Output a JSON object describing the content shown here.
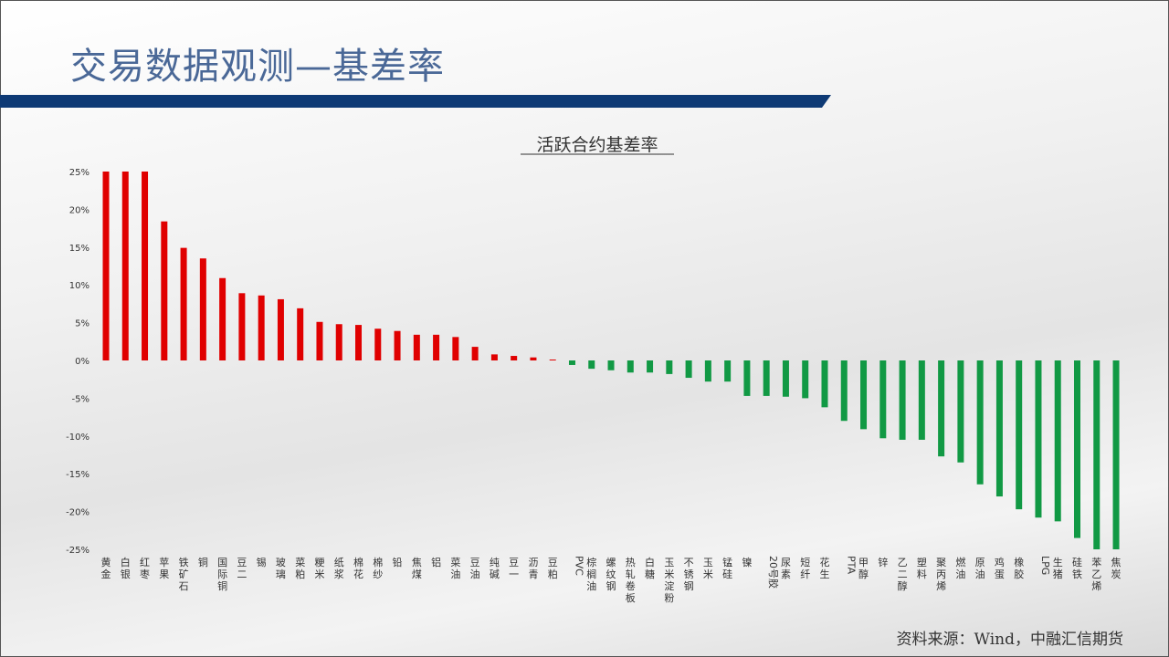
{
  "header": {
    "title": "交易数据观测—基差率"
  },
  "footer": {
    "source": "资料来源：Wind，中融汇信期货"
  },
  "colors": {
    "title": "#4a6897",
    "title_bar": "#0e3a75",
    "positive": "#e00000",
    "negative": "#119944"
  },
  "chart_data": {
    "type": "bar",
    "title": "活跃合约基差率",
    "xlabel": "",
    "ylabel": "",
    "ylim": [
      -25,
      25
    ],
    "yticks": [
      "25%",
      "20%",
      "15%",
      "10%",
      "5%",
      "0%",
      "-5%",
      "-10%",
      "-15%",
      "-20%",
      "-25%"
    ],
    "grid": false,
    "legend": "none",
    "categories": [
      "黄金",
      "白银",
      "红枣",
      "苹果",
      "铁矿石",
      "铜",
      "国际铜",
      "豆二",
      "锡",
      "玻璃",
      "菜粕",
      "粳米",
      "纸浆",
      "棉花",
      "棉纱",
      "铅",
      "焦煤",
      "铝",
      "菜油",
      "豆油",
      "纯碱",
      "豆一",
      "沥青",
      "豆粕",
      "PVC",
      "棕榈油",
      "螺纹钢",
      "热轧卷板",
      "白糖",
      "玉米淀粉",
      "不锈钢",
      "玉米",
      "锰硅",
      "镍",
      "20号胶",
      "尿素",
      "短纤",
      "花生",
      "PTA",
      "甲醇",
      "锌",
      "乙二醇",
      "塑料",
      "聚丙烯",
      "燃油",
      "原油",
      "鸡蛋",
      "橡胶",
      "LPG",
      "生猪",
      "硅铁",
      "苯乙烯",
      "焦炭"
    ],
    "values": [
      25,
      25,
      25,
      18.4,
      14.9,
      13.5,
      10.9,
      8.9,
      8.6,
      8.1,
      6.9,
      5.1,
      4.8,
      4.7,
      4.2,
      3.9,
      3.4,
      3.4,
      3.1,
      1.8,
      0.8,
      0.6,
      0.4,
      0.1,
      -0.6,
      -1.1,
      -1.3,
      -1.6,
      -1.6,
      -1.8,
      -2.3,
      -2.8,
      -2.8,
      -4.7,
      -4.7,
      -4.8,
      -5.0,
      -6.2,
      -8.0,
      -9.1,
      -10.3,
      -10.5,
      -10.5,
      -12.7,
      -13.5,
      -16.4,
      -18.0,
      -19.7,
      -20.8,
      -21.3,
      -23.5,
      -25,
      -25
    ]
  }
}
